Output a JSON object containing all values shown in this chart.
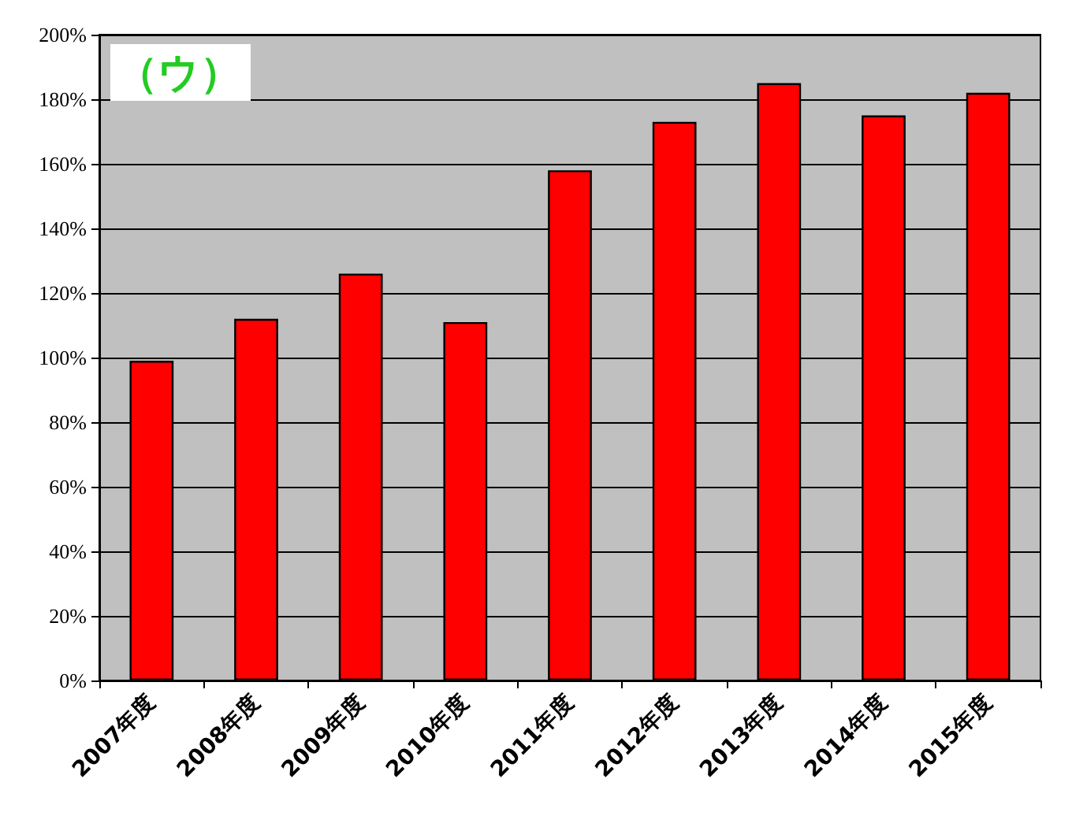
{
  "chart_data": {
    "type": "bar",
    "title": "（ウ）",
    "categories": [
      "2007年度",
      "2008年度",
      "2009年度",
      "2010年度",
      "2011年度",
      "2012年度",
      "2013年度",
      "2014年度",
      "2015年度"
    ],
    "values": [
      99,
      112,
      126,
      111,
      158,
      173,
      185,
      175,
      182
    ],
    "color": "#ff0000",
    "ylim": [
      0,
      200
    ],
    "yticks": [
      {
        "value": 0,
        "label": "0%"
      },
      {
        "value": 20,
        "label": "20%"
      },
      {
        "value": 40,
        "label": "40%"
      },
      {
        "value": 60,
        "label": "60%"
      },
      {
        "value": 80,
        "label": "80%"
      },
      {
        "value": 100,
        "label": "100%"
      },
      {
        "value": 120,
        "label": "120%"
      },
      {
        "value": 140,
        "label": "140%"
      },
      {
        "value": 160,
        "label": "160%"
      },
      {
        "value": 180,
        "label": "180%"
      },
      {
        "value": 200,
        "label": "200%"
      }
    ],
    "grid": "y"
  }
}
